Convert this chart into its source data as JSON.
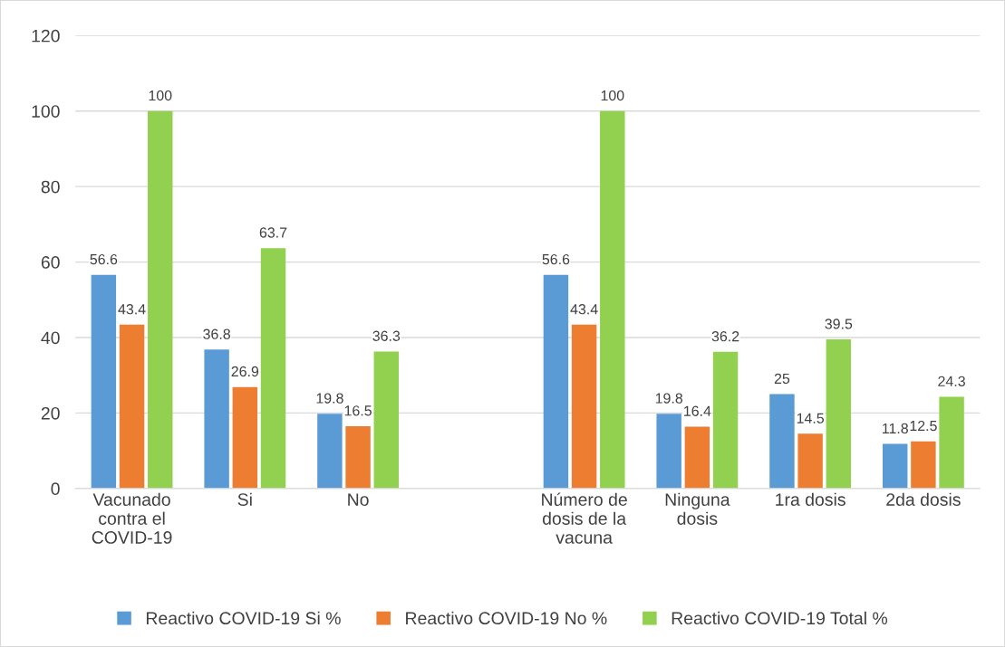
{
  "chart_data": {
    "type": "bar",
    "categories": [
      "Vacunado\ncontra el\nCOVID-19",
      "Si",
      "No",
      null,
      "Número de\ndosis de la\nvacuna",
      "Ninguna\ndosis",
      "1ra dosis",
      "2da dosis"
    ],
    "series": [
      {
        "name": "Reactivo COVID-19 Si %",
        "color": "#5b9bd5",
        "values": [
          56.6,
          36.8,
          19.8,
          null,
          56.6,
          19.8,
          25,
          11.8
        ]
      },
      {
        "name": "Reactivo COVID-19 No %",
        "color": "#ed7d31",
        "values": [
          43.4,
          26.9,
          16.5,
          null,
          43.4,
          16.4,
          14.5,
          12.5
        ]
      },
      {
        "name": "Reactivo COVID-19 Total %",
        "color": "#92d050",
        "values": [
          100,
          63.7,
          36.3,
          null,
          100,
          36.2,
          39.5,
          24.3
        ]
      }
    ],
    "ylim": [
      0,
      120
    ],
    "yticks": [
      0,
      20,
      40,
      60,
      80,
      100,
      120
    ],
    "grid": "y",
    "legend": "bottom",
    "data_labels": true
  }
}
